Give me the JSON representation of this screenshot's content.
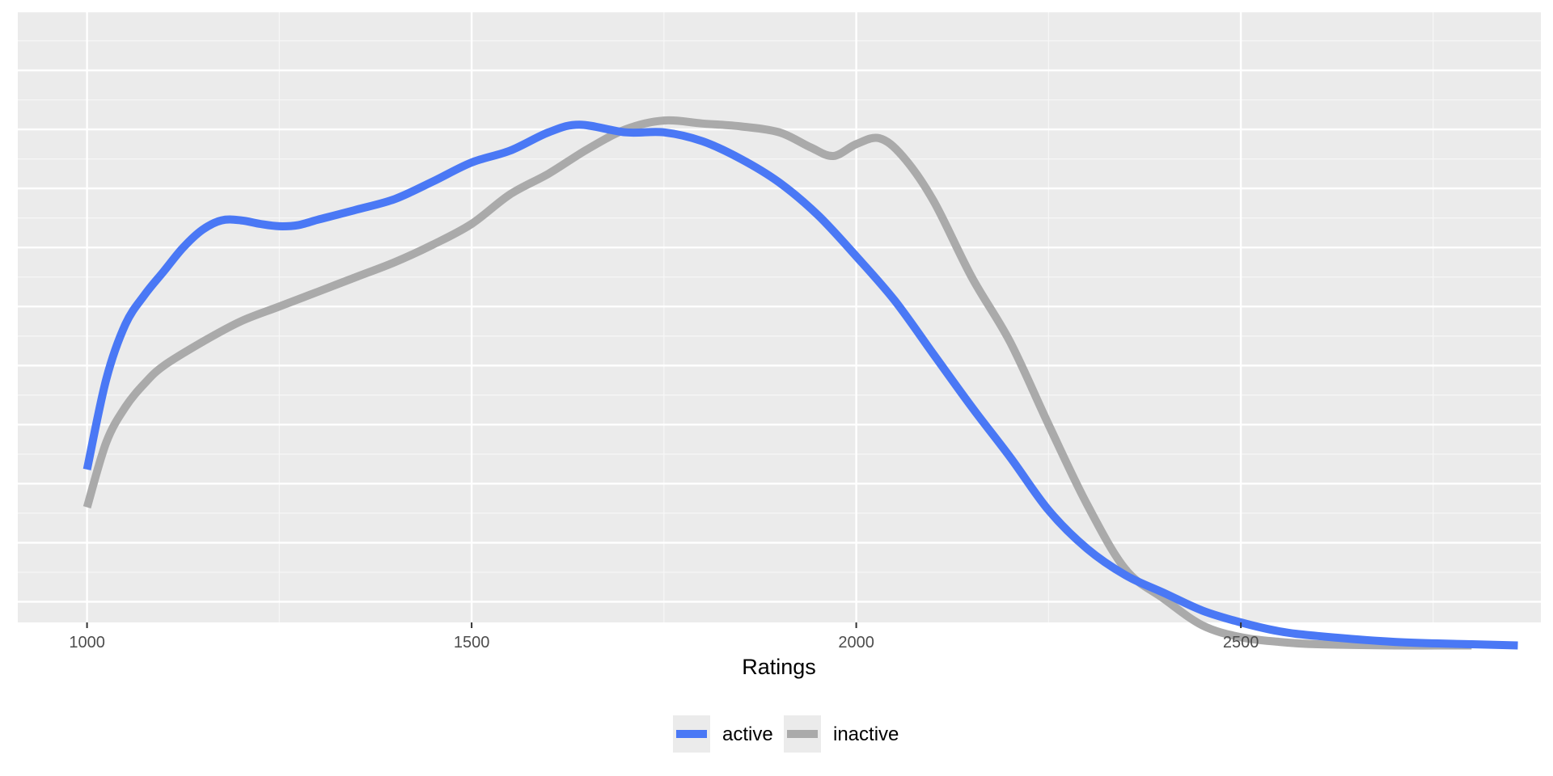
{
  "chart_data": {
    "type": "line",
    "xlabel": "Ratings",
    "ylabel": "",
    "title": "",
    "xlim": [
      910,
      2890
    ],
    "ylim": [
      -0.035,
      1.0
    ],
    "x_ticks": [
      1000,
      1500,
      2000,
      2500
    ],
    "x_tick_labels": [
      "1000",
      "1500",
      "2000",
      "2500"
    ],
    "y_tick_labels_shown": false,
    "grid": true,
    "legend_position": "bottom",
    "series": [
      {
        "name": "active",
        "color": "#4a78f5",
        "points": [
          [
            1000,
            0.224
          ],
          [
            1025,
            0.377
          ],
          [
            1050,
            0.47
          ],
          [
            1075,
            0.52
          ],
          [
            1100,
            0.56
          ],
          [
            1125,
            0.6
          ],
          [
            1150,
            0.63
          ],
          [
            1175,
            0.646
          ],
          [
            1200,
            0.646
          ],
          [
            1225,
            0.64
          ],
          [
            1250,
            0.636
          ],
          [
            1275,
            0.638
          ],
          [
            1300,
            0.647
          ],
          [
            1350,
            0.664
          ],
          [
            1400,
            0.682
          ],
          [
            1450,
            0.712
          ],
          [
            1500,
            0.744
          ],
          [
            1550,
            0.764
          ],
          [
            1600,
            0.795
          ],
          [
            1640,
            0.808
          ],
          [
            1700,
            0.795
          ],
          [
            1750,
            0.795
          ],
          [
            1800,
            0.78
          ],
          [
            1850,
            0.75
          ],
          [
            1900,
            0.71
          ],
          [
            1950,
            0.655
          ],
          [
            2000,
            0.585
          ],
          [
            2050,
            0.51
          ],
          [
            2100,
            0.42
          ],
          [
            2150,
            0.33
          ],
          [
            2200,
            0.245
          ],
          [
            2250,
            0.155
          ],
          [
            2300,
            0.09
          ],
          [
            2350,
            0.045
          ],
          [
            2400,
            0.015
          ],
          [
            2450,
            -0.015
          ],
          [
            2500,
            -0.035
          ],
          [
            2550,
            -0.05
          ],
          [
            2600,
            -0.058
          ],
          [
            2700,
            -0.068
          ],
          [
            2800,
            -0.072
          ],
          [
            2860,
            -0.074
          ]
        ]
      },
      {
        "name": "inactive",
        "color": "#aaaaaa",
        "points": [
          [
            1000,
            0.16
          ],
          [
            1025,
            0.27
          ],
          [
            1050,
            0.33
          ],
          [
            1075,
            0.37
          ],
          [
            1100,
            0.4
          ],
          [
            1150,
            0.44
          ],
          [
            1200,
            0.475
          ],
          [
            1250,
            0.5
          ],
          [
            1300,
            0.525
          ],
          [
            1350,
            0.55
          ],
          [
            1400,
            0.575
          ],
          [
            1450,
            0.605
          ],
          [
            1500,
            0.64
          ],
          [
            1550,
            0.69
          ],
          [
            1600,
            0.725
          ],
          [
            1650,
            0.766
          ],
          [
            1700,
            0.8
          ],
          [
            1750,
            0.815
          ],
          [
            1800,
            0.81
          ],
          [
            1850,
            0.805
          ],
          [
            1900,
            0.795
          ],
          [
            1940,
            0.77
          ],
          [
            1970,
            0.755
          ],
          [
            2000,
            0.775
          ],
          [
            2030,
            0.785
          ],
          [
            2060,
            0.755
          ],
          [
            2100,
            0.68
          ],
          [
            2150,
            0.55
          ],
          [
            2200,
            0.44
          ],
          [
            2250,
            0.3
          ],
          [
            2300,
            0.165
          ],
          [
            2350,
            0.055
          ],
          [
            2400,
            0.005
          ],
          [
            2450,
            -0.04
          ],
          [
            2500,
            -0.06
          ],
          [
            2550,
            -0.068
          ],
          [
            2600,
            -0.072
          ],
          [
            2700,
            -0.074
          ],
          [
            2800,
            -0.074
          ]
        ]
      }
    ]
  }
}
